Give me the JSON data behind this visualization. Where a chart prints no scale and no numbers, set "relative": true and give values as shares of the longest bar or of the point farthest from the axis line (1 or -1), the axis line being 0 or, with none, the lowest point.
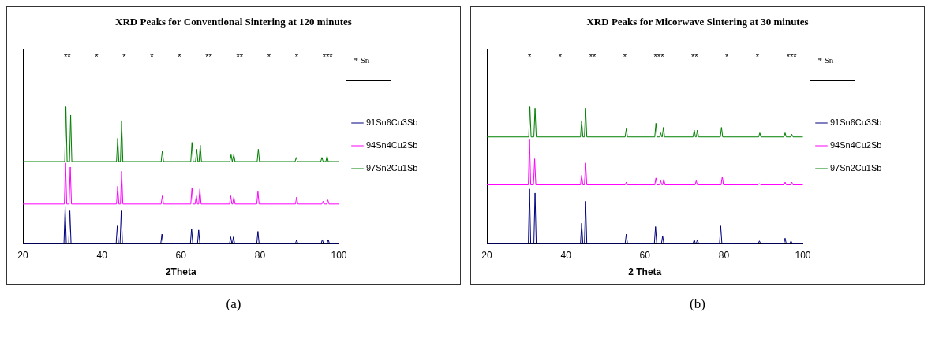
{
  "chart_data": [
    {
      "type": "line",
      "title": "XRD Peaks for Conventional Sintering at 120 minutes",
      "xlabel": "2Theta",
      "relative": true,
      "xlim": [
        20,
        100
      ],
      "xticks": [
        20,
        40,
        60,
        80,
        100
      ],
      "legend": "right",
      "grid": false,
      "marker": "none",
      "line_style": "solid",
      "annotations": [
        "* Sn",
        "(a)",
        "** * * * * ** ** * * ***"
      ],
      "series": [
        {
          "name": "91Sn6Cu3Sb",
          "color": "#000080",
          "x": [
            20,
            30.4,
            30.7,
            31.0,
            31.6,
            31.9,
            32.2,
            43.6,
            43.9,
            44.2,
            44.6,
            44.9,
            45.2,
            54.9,
            55.2,
            55.5,
            62.4,
            62.7,
            63.0,
            64.2,
            64.5,
            64.8,
            72.3,
            72.6,
            72.9,
            73.0,
            73.3,
            73.6,
            79.2,
            79.5,
            79.8,
            89.0,
            89.3,
            89.6,
            95.5,
            95.8,
            96.1,
            97.0,
            97.3,
            97.6,
            100
          ],
          "values": [
            0,
            0,
            0.27,
            0,
            0,
            0.24,
            0,
            0,
            0.13,
            0,
            0,
            0.24,
            0,
            0,
            0.07,
            0,
            0,
            0.11,
            0,
            0,
            0.1,
            0,
            0,
            0.05,
            0,
            0,
            0.05,
            0,
            0,
            0.09,
            0,
            0,
            0.03,
            0,
            0,
            0.03,
            0,
            0,
            0.03,
            0,
            0
          ]
        },
        {
          "name": "94Sn4Cu2Sb",
          "color": "#ff00ff",
          "x": [
            20,
            30.5,
            30.8,
            31.1,
            31.7,
            32.0,
            32.3,
            43.7,
            44.0,
            44.3,
            44.7,
            45.0,
            45.3,
            55.0,
            55.3,
            55.6,
            62.5,
            62.8,
            63.1,
            63.6,
            63.9,
            64.2,
            64.5,
            64.8,
            65.1,
            72.3,
            72.6,
            72.9,
            73.1,
            73.4,
            73.7,
            79.2,
            79.5,
            79.8,
            89.0,
            89.3,
            89.6,
            95.7,
            96.0,
            96.3,
            96.9,
            97.2,
            97.5,
            100
          ],
          "values": [
            0.29,
            0.29,
            0.59,
            0.29,
            0.29,
            0.56,
            0.29,
            0.29,
            0.42,
            0.29,
            0.29,
            0.53,
            0.29,
            0.29,
            0.35,
            0.29,
            0.29,
            0.41,
            0.29,
            0.29,
            0.35,
            0.29,
            0.29,
            0.4,
            0.29,
            0.29,
            0.35,
            0.29,
            0.29,
            0.34,
            0.29,
            0.29,
            0.38,
            0.29,
            0.29,
            0.34,
            0.29,
            0.29,
            0.31,
            0.29,
            0.29,
            0.32,
            0.29,
            0.29
          ]
        },
        {
          "name": "97Sn2Cu1Sb",
          "color": "#008000",
          "x": [
            20,
            30.6,
            30.9,
            31.2,
            31.8,
            32.1,
            32.4,
            43.7,
            44.0,
            44.3,
            44.7,
            45.0,
            45.3,
            55.0,
            55.3,
            55.6,
            62.5,
            62.8,
            63.1,
            63.7,
            64.0,
            64.3,
            64.6,
            64.9,
            65.2,
            72.4,
            72.7,
            73.0,
            73.1,
            73.4,
            73.7,
            79.3,
            79.6,
            79.9,
            88.9,
            89.2,
            89.5,
            95.4,
            95.7,
            96.0,
            96.7,
            97.0,
            97.3,
            100
          ],
          "values": [
            0.6,
            0.6,
            1,
            0.6,
            0.6,
            0.94,
            0.6,
            0.6,
            0.77,
            0.6,
            0.6,
            0.9,
            0.6,
            0.6,
            0.68,
            0.6,
            0.6,
            0.74,
            0.6,
            0.6,
            0.69,
            0.6,
            0.6,
            0.72,
            0.6,
            0.6,
            0.65,
            0.6,
            0.6,
            0.65,
            0.6,
            0.6,
            0.69,
            0.6,
            0.6,
            0.63,
            0.6,
            0.6,
            0.63,
            0.6,
            0.6,
            0.64,
            0.6,
            0.6
          ]
        }
      ]
    },
    {
      "type": "line",
      "title": "XRD Peaks for Micorwave Sintering at 30 minutes",
      "xlabel": "2 Theta",
      "relative": true,
      "xlim": [
        20,
        100
      ],
      "xticks": [
        20,
        40,
        60,
        80,
        100
      ],
      "legend": "right",
      "grid": false,
      "marker": "none",
      "line_style": "solid",
      "annotations": [
        "* Sn",
        "(b)",
        "* * ** * *** ** * * ***"
      ],
      "series": [
        {
          "name": "91Sn6Cu3Sb",
          "color": "#000080",
          "x": [
            20,
            30.5,
            30.8,
            31.1,
            31.9,
            32.2,
            32.5,
            43.7,
            44.0,
            44.3,
            44.7,
            45.0,
            45.3,
            55.0,
            55.3,
            55.6,
            62.4,
            62.7,
            63.0,
            64.2,
            64.5,
            64.8,
            72.2,
            72.5,
            72.8,
            73.0,
            73.3,
            73.6,
            78.9,
            79.2,
            79.5,
            88.7,
            89.0,
            89.3,
            95.2,
            95.5,
            95.8,
            96.7,
            97.0,
            97.3,
            100
          ],
          "values": [
            0,
            0,
            0.4,
            0,
            0,
            0.37,
            0,
            0,
            0.15,
            0,
            0,
            0.31,
            0,
            0,
            0.07,
            0,
            0,
            0.125,
            0,
            0,
            0.057,
            0,
            0,
            0.03,
            0,
            0,
            0.03,
            0,
            0,
            0.13,
            0,
            0,
            0.02,
            0,
            0,
            0.04,
            0,
            0,
            0.02,
            0,
            0
          ]
        },
        {
          "name": "94Sn4Cu2Sb",
          "color": "#ff00ff",
          "x": [
            20,
            30.5,
            30.8,
            31.1,
            31.8,
            32.1,
            32.4,
            43.7,
            44.0,
            44.3,
            44.7,
            45.0,
            45.3,
            55.0,
            55.3,
            55.6,
            62.5,
            62.8,
            63.1,
            63.7,
            64.0,
            64.3,
            64.5,
            64.8,
            65.1,
            72.7,
            73.0,
            73.3,
            79.3,
            79.6,
            79.9,
            88.7,
            89.0,
            89.3,
            95.2,
            95.5,
            95.8,
            96.9,
            97.2,
            97.5,
            100
          ],
          "values": [
            0.43,
            0.43,
            0.76,
            0.43,
            0.43,
            0.62,
            0.43,
            0.43,
            0.5,
            0.43,
            0.43,
            0.59,
            0.43,
            0.43,
            0.45,
            0.43,
            0.43,
            0.48,
            0.43,
            0.43,
            0.46,
            0.43,
            0.43,
            0.47,
            0.43,
            0.43,
            0.46,
            0.43,
            0.43,
            0.49,
            0.43,
            0.43,
            0.44,
            0.43,
            0.43,
            0.45,
            0.43,
            0.43,
            0.45,
            0.43,
            0.43
          ]
        },
        {
          "name": "97Sn2Cu1Sb",
          "color": "#008000",
          "x": [
            20,
            30.6,
            30.9,
            31.2,
            31.9,
            32.2,
            32.5,
            43.7,
            44.0,
            44.3,
            44.7,
            45.0,
            45.3,
            55.0,
            55.3,
            55.6,
            62.5,
            62.8,
            63.1,
            63.7,
            64.0,
            64.3,
            64.4,
            64.7,
            65.0,
            72.2,
            72.5,
            72.8,
            73.0,
            73.3,
            73.6,
            79.1,
            79.4,
            79.7,
            88.8,
            89.1,
            89.4,
            95.2,
            95.5,
            95.8,
            96.9,
            97.2,
            97.5,
            100
          ],
          "values": [
            0.78,
            0.78,
            1,
            0.78,
            0.78,
            0.99,
            0.78,
            0.78,
            0.9,
            0.78,
            0.78,
            0.99,
            0.78,
            0.78,
            0.84,
            0.78,
            0.78,
            0.88,
            0.78,
            0.78,
            0.81,
            0.78,
            0.78,
            0.85,
            0.78,
            0.78,
            0.83,
            0.78,
            0.78,
            0.83,
            0.78,
            0.78,
            0.85,
            0.78,
            0.78,
            0.81,
            0.78,
            0.78,
            0.81,
            0.78,
            0.78,
            0.8,
            0.78,
            0.78
          ]
        }
      ]
    }
  ]
}
